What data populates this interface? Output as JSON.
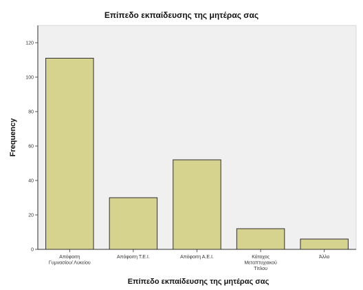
{
  "chart_data": {
    "type": "bar",
    "title": "Επίπεδο εκπαίδευσης της μητέρας σας",
    "xlabel": "Επίπεδο εκπαίδευσης της μητέρας σας",
    "ylabel": "Frequency",
    "categories": [
      [
        "Απόφοιτη",
        "Γυμνασίου/ Λυκείου"
      ],
      [
        "Απόφοιτη Τ.Ε.Ι."
      ],
      [
        "Απόφοιτη Α.Ε.Ι."
      ],
      [
        "Κάτοχος",
        "Μεταπτυχιακού",
        "Τίτλου"
      ],
      [
        "Άλλο"
      ]
    ],
    "values": [
      111,
      30,
      52,
      12,
      6
    ],
    "ylim": [
      0,
      130
    ],
    "yticks": [
      0,
      20,
      40,
      60,
      80,
      100,
      120
    ],
    "grid": false,
    "colors": {
      "bar_fill": "#d6d38f",
      "bar_stroke": "#2e2e2e",
      "plot_bg": "#f0f0f0",
      "axis": "#2e2e2e"
    }
  }
}
